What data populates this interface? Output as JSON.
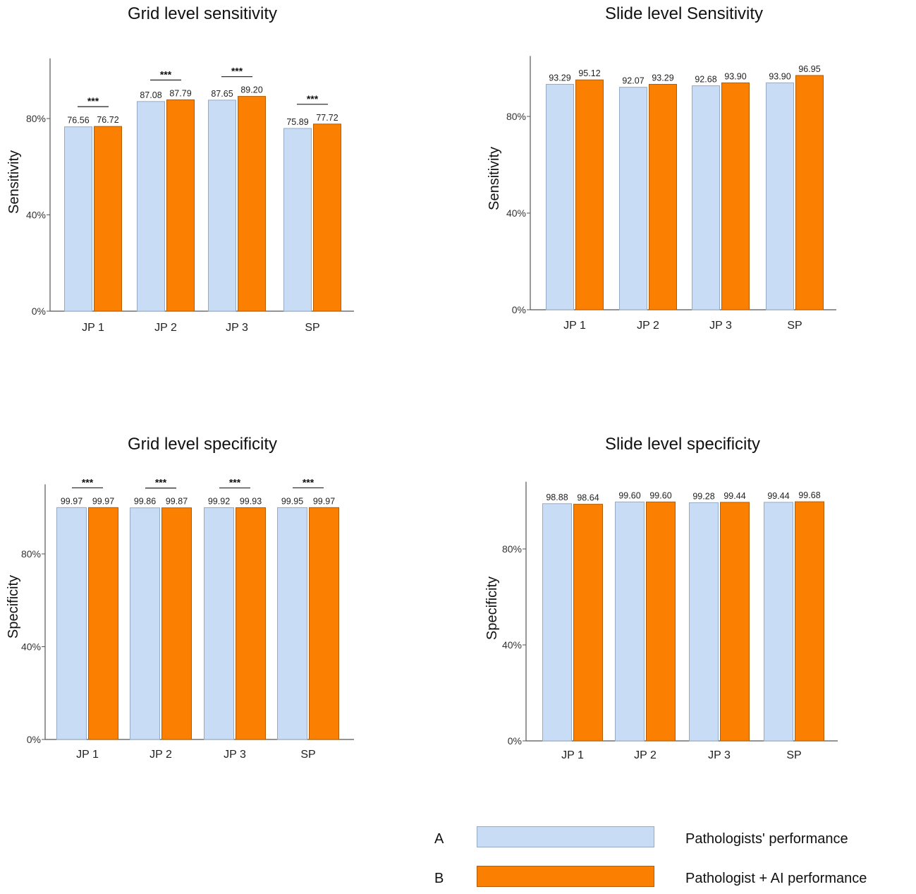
{
  "colors": {
    "A": "#c9dcf5",
    "B": "#fb7f00",
    "A_stroke": "#93abc6",
    "B_stroke": "#b85b00"
  },
  "chart_data": [
    {
      "type": "bar",
      "title": "Grid level sensitivity",
      "xlabel": "",
      "ylabel": "Sensitivity",
      "ylim": [
        0,
        105
      ],
      "yticks": [
        "0%",
        "40%",
        "80%"
      ],
      "ytick_values": [
        0,
        40,
        80
      ],
      "categories": [
        "JP 1",
        "JP 2",
        "JP 3",
        "SP"
      ],
      "series": [
        {
          "name": "Pathologists' performance",
          "values": [
            76.56,
            87.08,
            87.65,
            75.89
          ],
          "labels": [
            "76.56",
            "87.08",
            "87.65",
            "75.89"
          ]
        },
        {
          "name": "Pathologist + AI performance",
          "values": [
            76.72,
            87.79,
            89.2,
            77.72
          ],
          "labels": [
            "76.72",
            "87.79",
            "89.20",
            "77.72"
          ]
        }
      ],
      "significance": [
        "***",
        "***",
        "***",
        "***"
      ]
    },
    {
      "type": "bar",
      "title": "Slide level Sensitivity",
      "xlabel": "",
      "ylabel": "Sensitivity",
      "ylim": [
        0,
        105
      ],
      "yticks": [
        "0%",
        "40%",
        "80%"
      ],
      "ytick_values": [
        0,
        40,
        80
      ],
      "categories": [
        "JP 1",
        "JP 2",
        "JP 3",
        "SP"
      ],
      "series": [
        {
          "name": "Pathologists' performance",
          "values": [
            93.29,
            92.07,
            92.68,
            93.9
          ],
          "labels": [
            "93.29",
            "92.07",
            "92.68",
            "93.90"
          ]
        },
        {
          "name": "Pathologist + AI performance",
          "values": [
            95.12,
            93.29,
            93.9,
            96.95
          ],
          "labels": [
            "95.12",
            "93.29",
            "93.90",
            "96.95"
          ]
        }
      ],
      "significance": []
    },
    {
      "type": "bar",
      "title": "Grid level specificity",
      "xlabel": "",
      "ylabel": "Specificity",
      "ylim": [
        0,
        110
      ],
      "yticks": [
        "0%",
        "40%",
        "80%"
      ],
      "ytick_values": [
        0,
        40,
        80
      ],
      "categories": [
        "JP 1",
        "JP 2",
        "JP 3",
        "SP"
      ],
      "series": [
        {
          "name": "Pathologists' performance",
          "values": [
            99.97,
            99.86,
            99.92,
            99.95
          ],
          "labels": [
            "99.97",
            "99.86",
            "99.92",
            "99.95"
          ]
        },
        {
          "name": "Pathologist + AI performance",
          "values": [
            99.97,
            99.87,
            99.93,
            99.97
          ],
          "labels": [
            "99.97",
            "99.87",
            "99.93",
            "99.97"
          ]
        }
      ],
      "significance": [
        "***",
        "***",
        "***",
        "***"
      ]
    },
    {
      "type": "bar",
      "title": "Slide level specificity",
      "xlabel": "",
      "ylabel": "Specificity",
      "ylim": [
        0,
        108
      ],
      "yticks": [
        "0%",
        "40%",
        "80%"
      ],
      "ytick_values": [
        0,
        40,
        80
      ],
      "categories": [
        "JP 1",
        "JP 2",
        "JP 3",
        "SP"
      ],
      "series": [
        {
          "name": "Pathologists' performance",
          "values": [
            98.88,
            99.6,
            99.28,
            99.44
          ],
          "labels": [
            "98.88",
            "99.60",
            "99.28",
            "99.44"
          ]
        },
        {
          "name": "Pathologist + AI performance",
          "values": [
            98.64,
            99.6,
            99.44,
            99.68
          ],
          "labels": [
            "98.64",
            "99.60",
            "99.44",
            "99.68"
          ]
        }
      ],
      "significance": []
    }
  ],
  "legend": [
    {
      "letter": "A",
      "label": "Pathologists' performance"
    },
    {
      "letter": "B",
      "label": "Pathologist + AI performance"
    }
  ]
}
